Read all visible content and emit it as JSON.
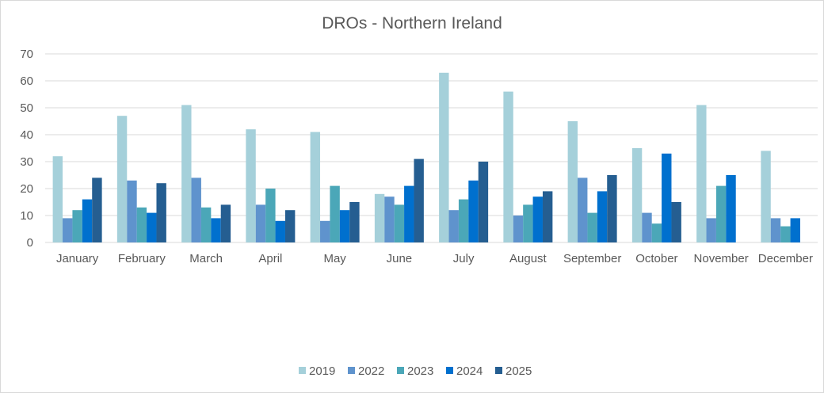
{
  "chart_data": {
    "type": "bar",
    "title": "DROs - Northern Ireland",
    "xlabel": "",
    "ylabel": "",
    "ylim": [
      0,
      70
    ],
    "yticks": [
      0,
      10,
      20,
      30,
      40,
      50,
      60,
      70
    ],
    "grid": true,
    "legend_position": "bottom",
    "categories": [
      "January",
      "February",
      "March",
      "April",
      "May",
      "June",
      "July",
      "August",
      "September",
      "October",
      "November",
      "December"
    ],
    "series": [
      {
        "name": "2019",
        "color": "#A5D0DA",
        "values": [
          32,
          47,
          51,
          42,
          41,
          18,
          63,
          56,
          45,
          35,
          51,
          34
        ]
      },
      {
        "name": "2022",
        "color": "#5F93CD",
        "values": [
          9,
          23,
          24,
          14,
          8,
          17,
          12,
          10,
          24,
          11,
          9,
          9
        ]
      },
      {
        "name": "2023",
        "color": "#4BA7B8",
        "values": [
          12,
          13,
          13,
          20,
          21,
          14,
          16,
          14,
          11,
          7,
          21,
          6
        ]
      },
      {
        "name": "2024",
        "color": "#0070CE",
        "values": [
          16,
          11,
          9,
          8,
          12,
          21,
          23,
          17,
          19,
          33,
          25,
          9
        ]
      },
      {
        "name": "2025",
        "color": "#255E91",
        "values": [
          24,
          22,
          14,
          12,
          15,
          31,
          30,
          19,
          25,
          15,
          null,
          null
        ]
      }
    ]
  }
}
